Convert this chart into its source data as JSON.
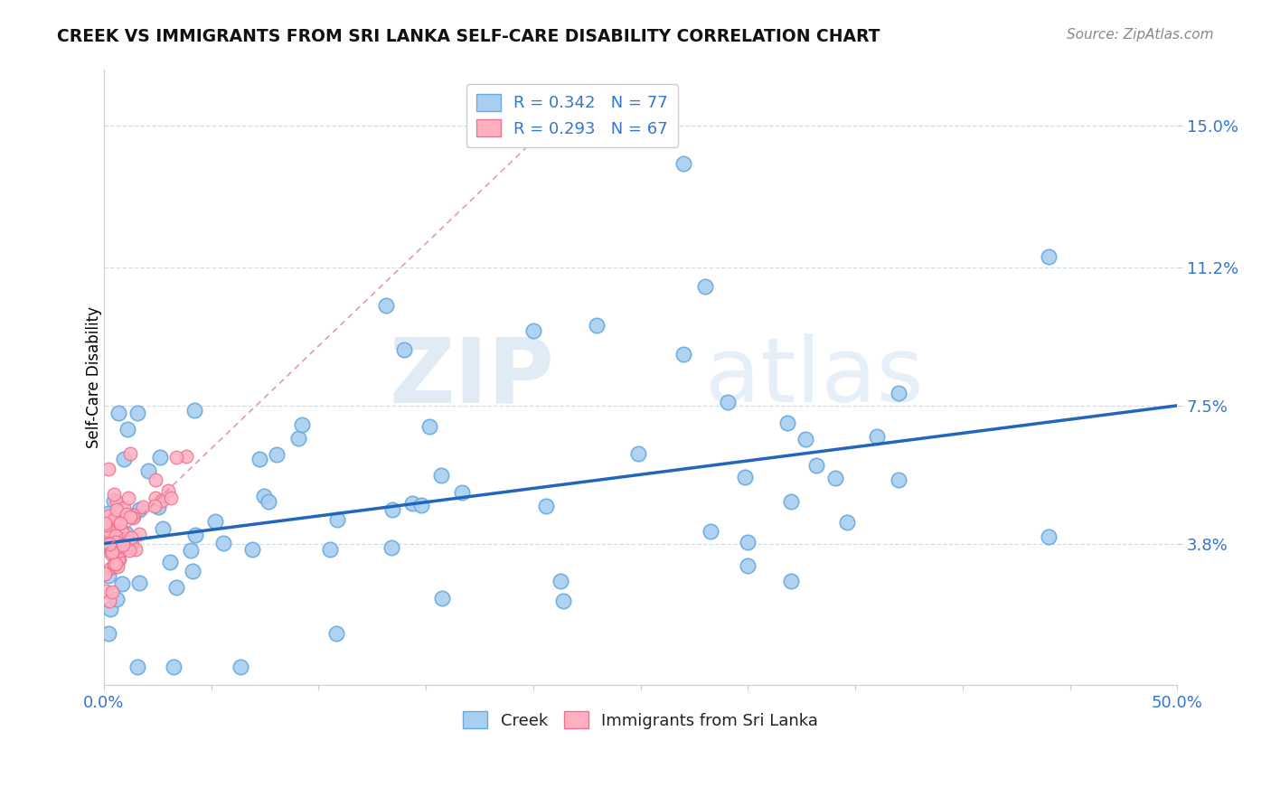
{
  "title": "CREEK VS IMMIGRANTS FROM SRI LANKA SELF-CARE DISABILITY CORRELATION CHART",
  "source": "Source: ZipAtlas.com",
  "ylabel": "Self-Care Disability",
  "xlim": [
    0.0,
    0.5
  ],
  "ylim": [
    0.0,
    0.165
  ],
  "yticks": [
    0.038,
    0.075,
    0.112,
    0.15
  ],
  "ytick_labels": [
    "3.8%",
    "7.5%",
    "11.2%",
    "15.0%"
  ],
  "xtick_labels": [
    "0.0%",
    "50.0%"
  ],
  "creek_color": "#A8CFF0",
  "creek_edge_color": "#6AAAE0",
  "sri_lanka_color": "#FFB0C0",
  "sri_lanka_edge_color": "#F07090",
  "creek_R": 0.342,
  "creek_N": 77,
  "sri_lanka_R": 0.293,
  "sri_lanka_N": 67,
  "trend_blue_color": "#2266BB",
  "trend_pink_color": "#E08090",
  "watermark_zip": "ZIP",
  "watermark_atlas": "atlas",
  "background_color": "#FFFFFF",
  "grid_color": "#CCDDEE",
  "spine_color": "#CCCCCC"
}
